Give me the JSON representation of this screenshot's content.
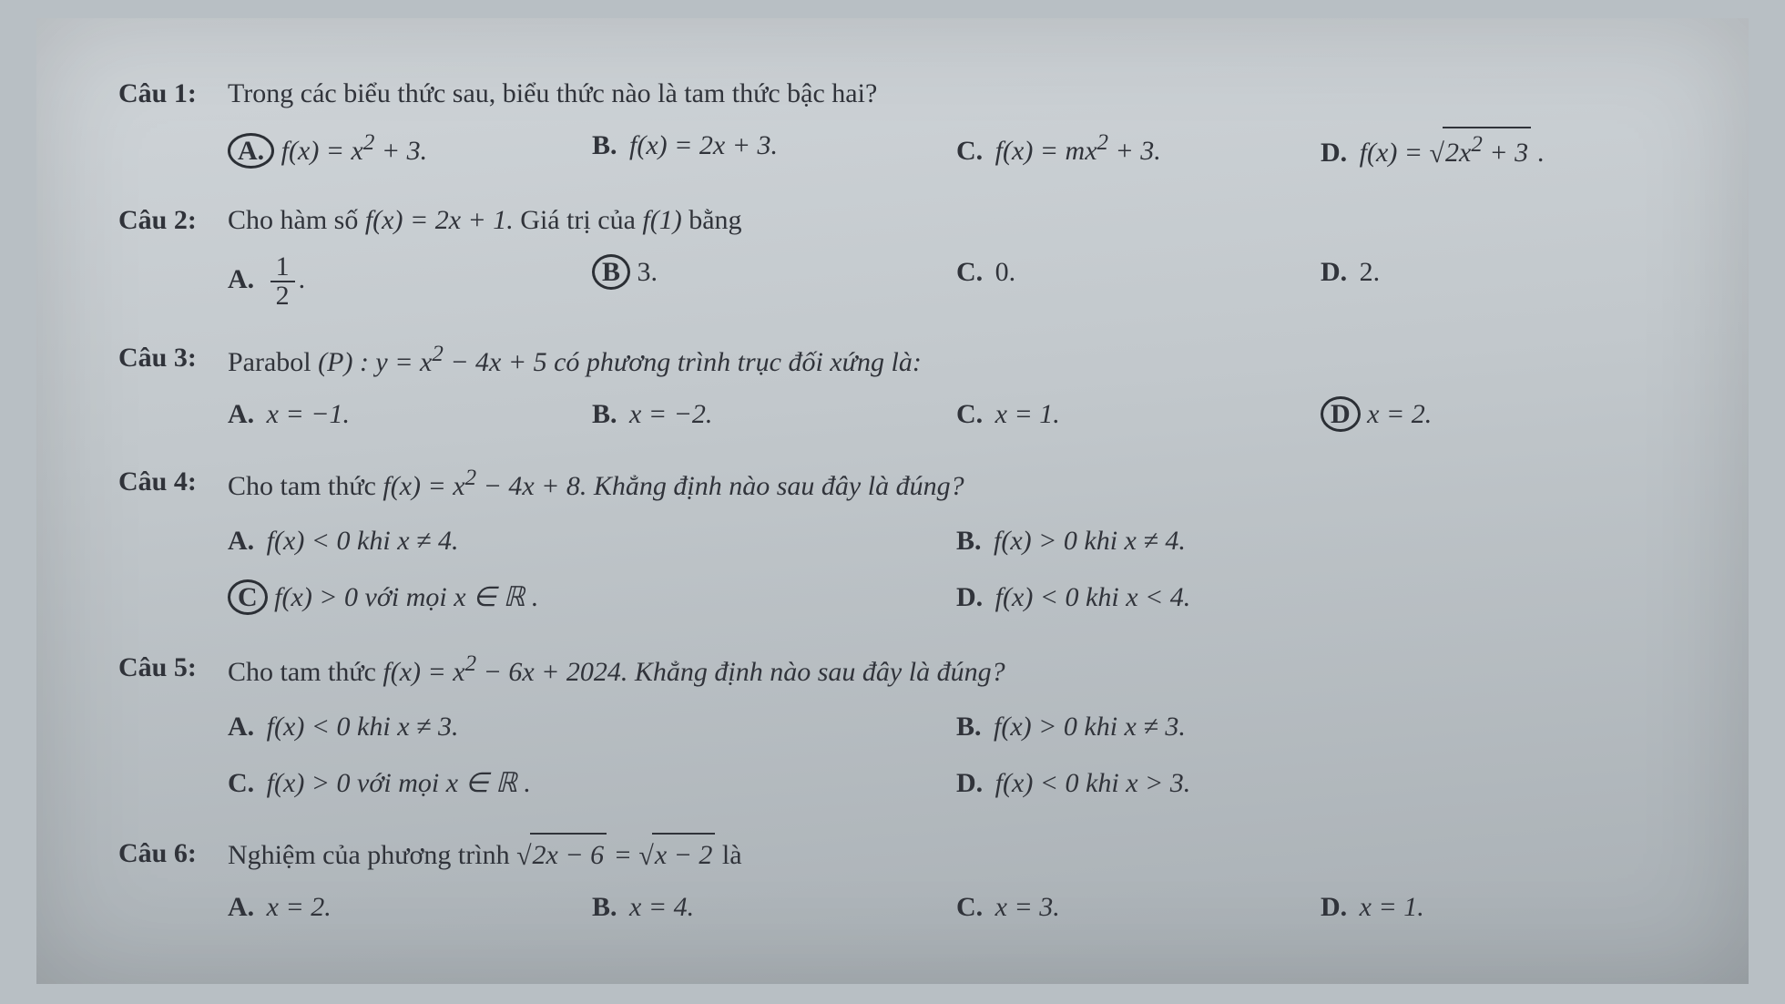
{
  "page": {
    "background_color": "#b8bfc4",
    "sheet_gradient": [
      "#d0d5d9",
      "#c2c8cc",
      "#a8afb4"
    ],
    "text_color": "#30333a",
    "font_family": "Times New Roman",
    "stem_fontsize": 30,
    "opt_fontsize": 30
  },
  "q1": {
    "num": "Câu 1:",
    "text": "Trong các biểu thức sau, biểu thức nào là tam thức bậc hai?",
    "A": {
      "label": "A.",
      "pre": "f(x) = x",
      "sup": "2",
      "post": " + 3."
    },
    "B": {
      "label": "B.",
      "txt": "f(x) = 2x + 3."
    },
    "C": {
      "label": "C.",
      "pre": "f(x) = mx",
      "sup": "2",
      "post": " + 3."
    },
    "D": {
      "label": "D.",
      "radic": "√",
      "inner_pre": "2x",
      "inner_sup": "2",
      "inner_post": " + 3",
      "pre": "f(x) = ",
      "post": " ."
    },
    "circled": "A"
  },
  "q2": {
    "num": "Câu 2:",
    "text_pre": "Cho hàm số ",
    "text_fn": "f(x) = 2x + 1.",
    "text_mid": " Giá trị của ",
    "text_fv": "f(1)",
    "text_post": " bằng",
    "A": {
      "label": "A.",
      "num": "1",
      "den": "2",
      "post": "."
    },
    "B": {
      "label": "B",
      "txt": "3."
    },
    "C": {
      "label": "C.",
      "txt": "0."
    },
    "D": {
      "label": "D.",
      "txt": "2."
    },
    "circled": "B"
  },
  "q3": {
    "num": "Câu 3:",
    "text_pre": "Parabol ",
    "text_par": "(P) : y = x",
    "text_sup": "2",
    "text_post": " − 4x + 5 có phương trình trục đối xứng là:",
    "A": {
      "label": "A.",
      "txt": "x = −1."
    },
    "B": {
      "label": "B.",
      "txt": "x = −2."
    },
    "C": {
      "label": "C.",
      "txt": "x = 1."
    },
    "D": {
      "label": "D",
      "txt": "x = 2."
    },
    "circled": "D"
  },
  "q4": {
    "num": "Câu 4:",
    "text_pre": "Cho tam thức ",
    "text_fn": "f(x) = x",
    "text_sup": "2",
    "text_post": " − 4x + 8. Khẳng định nào sau đây là đúng?",
    "A": {
      "label": "A.",
      "txt": "f(x) < 0 khi x ≠ 4."
    },
    "B": {
      "label": "B.",
      "txt": "f(x) > 0 khi x ≠ 4."
    },
    "C": {
      "label": "C",
      "txt": "f(x) > 0 với mọi x ∈ ℝ ."
    },
    "D": {
      "label": "D.",
      "txt": "f(x) < 0 khi x < 4."
    },
    "circled": "C"
  },
  "q5": {
    "num": "Câu 5:",
    "text_pre": "Cho tam thức ",
    "text_fn": "f(x) = x",
    "text_sup": "2",
    "text_post": " − 6x + 2024. Khẳng định nào sau đây là đúng?",
    "A": {
      "label": "A.",
      "txt": "f(x) < 0 khi x ≠ 3."
    },
    "B": {
      "label": "B.",
      "txt": "f(x) > 0 khi x ≠ 3."
    },
    "C": {
      "label": "C.",
      "txt": "f(x) > 0 với mọi x ∈ ℝ ."
    },
    "D": {
      "label": "D.",
      "txt": "f(x) < 0 khi x > 3."
    }
  },
  "q6": {
    "num": "Câu 6:",
    "text_pre": "Nghiệm của phương trình ",
    "sqrt1": "2x − 6",
    "eq": " = ",
    "sqrt2": "x − 2",
    "text_post": " là",
    "radic": "√",
    "A": {
      "label": "A.",
      "txt": "x = 2."
    },
    "B": {
      "label": "B.",
      "txt": "x = 4."
    },
    "C": {
      "label": "C.",
      "txt": "x = 3."
    },
    "D": {
      "label": "D.",
      "txt": "x = 1."
    }
  }
}
